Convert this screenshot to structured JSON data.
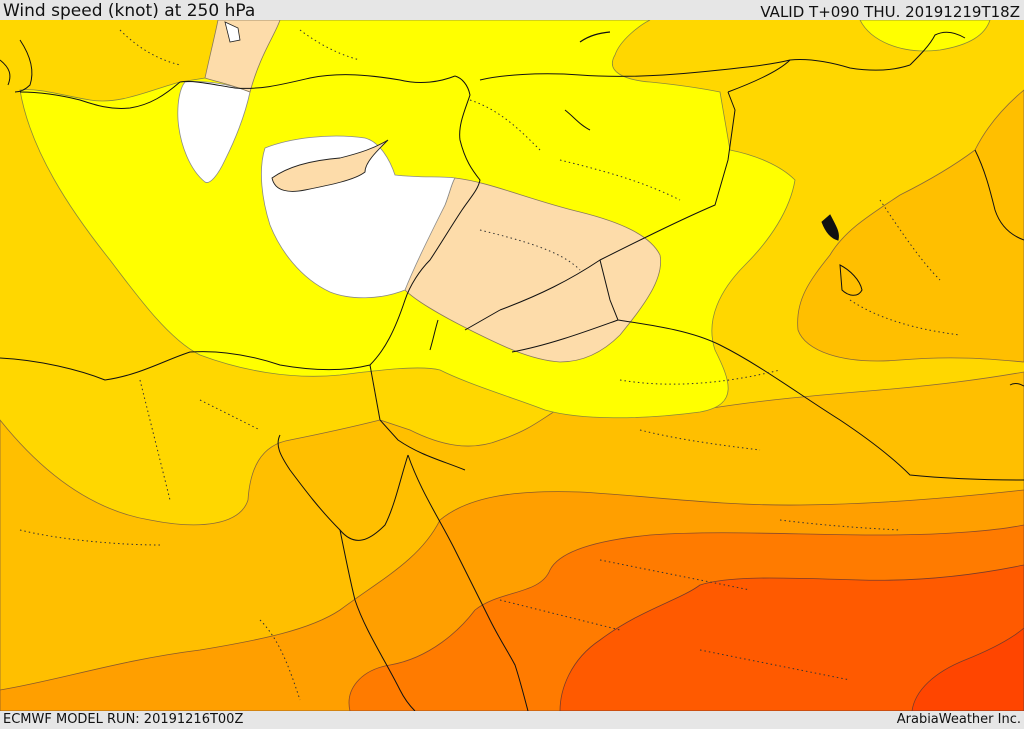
{
  "header": {
    "title": "Wind speed (knot) at 250 hPa",
    "valid": "VALID T+090 THU. 20191219T18Z"
  },
  "footer": {
    "model_run": "ECMWF MODEL RUN: 20191216T00Z",
    "credit": "ArabiaWeather Inc."
  },
  "colors": {
    "lowest": "#ffffff",
    "very_low": "#fddcaa",
    "low": "#ffff00",
    "moderate": "#ffe000",
    "high": "#ffbe00",
    "higher": "#ff9f00",
    "very_high": "#ff6000",
    "extreme": "#ff4500"
  }
}
